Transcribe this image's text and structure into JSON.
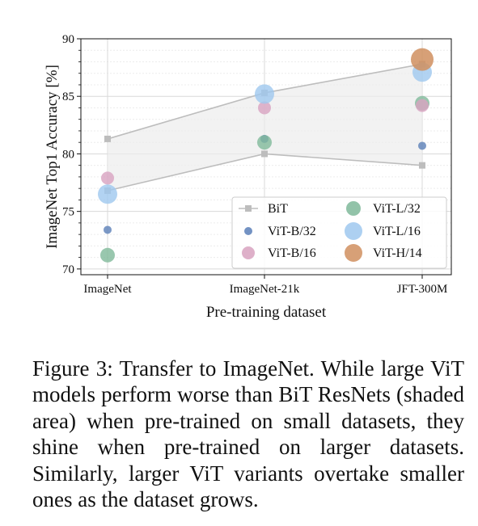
{
  "chart_data": {
    "type": "scatter",
    "xlabel": "Pre-training dataset",
    "ylabel": "ImageNet Top1 Accuracy [%]",
    "categories": [
      "ImageNet",
      "ImageNet-21k",
      "JFT-300M"
    ],
    "yticks": [
      70,
      75,
      80,
      85,
      90
    ],
    "ylim": [
      69.5,
      90
    ],
    "grid": true,
    "legend_position": "lower-right",
    "shaded_band": {
      "upper": [
        81.3,
        85.3,
        87.8
      ],
      "lower": [
        76.8,
        80.0,
        79.0
      ]
    },
    "series": [
      {
        "name": "BiT",
        "marker": "square-line",
        "color": "#bdbdbd",
        "values": [
          81.3,
          85.3,
          87.8
        ],
        "values_low": [
          76.8,
          80.0,
          79.0
        ]
      },
      {
        "name": "ViT-B/32",
        "marker": "circle",
        "size": 5,
        "color": "#5b7fb8",
        "values": [
          73.4,
          81.3,
          80.7
        ]
      },
      {
        "name": "ViT-B/16",
        "marker": "circle",
        "size": 8,
        "color": "#d8a2c0",
        "values": [
          77.9,
          84.0,
          84.2
        ]
      },
      {
        "name": "ViT-L/32",
        "marker": "circle",
        "size": 9,
        "color": "#7fb99a",
        "values": [
          71.2,
          81.0,
          84.4
        ]
      },
      {
        "name": "ViT-L/16",
        "marker": "circle",
        "size": 12,
        "color": "#9fc8ef",
        "values": [
          76.5,
          85.2,
          87.1
        ]
      },
      {
        "name": "ViT-H/14",
        "marker": "circle",
        "size": 14,
        "color": "#d08f5f",
        "values": [
          null,
          null,
          88.2
        ]
      }
    ]
  },
  "caption": {
    "text": "Figure 3:  Transfer to ImageNet.  While large ViT models perform worse than BiT ResNets (shaded area) when pre-trained on small datasets, they shine when pre-trained on larger datasets.  Similarly, larger ViT variants overtake smaller ones as the dataset grows."
  }
}
